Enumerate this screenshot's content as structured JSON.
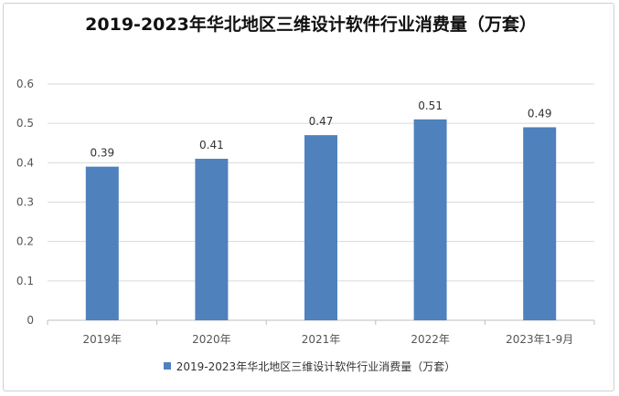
{
  "chart_data": {
    "type": "bar",
    "title": "2019-2023年华北地区三维设计软件行业消费量（万套）",
    "categories": [
      "2019年",
      "2020年",
      "2021年",
      "2022年",
      "2023年1-9月"
    ],
    "series": [
      {
        "name": "2019-2023年华北地区三维设计软件行业消费量（万套）",
        "values": [
          0.39,
          0.41,
          0.47,
          0.51,
          0.49
        ]
      }
    ],
    "data_labels": [
      "0.39",
      "0.41",
      "0.47",
      "0.51",
      "0.49"
    ],
    "y_ticks": [
      "0",
      "0.1",
      "0.2",
      "0.3",
      "0.4",
      "0.5",
      "0.6"
    ],
    "ylim": [
      0,
      0.6
    ],
    "grid": true,
    "legend_position": "bottom",
    "colors": {
      "bar": "#4f81bd",
      "grid": "#d9d9d9",
      "axis": "#bfbfbf",
      "text": "#555555"
    }
  }
}
